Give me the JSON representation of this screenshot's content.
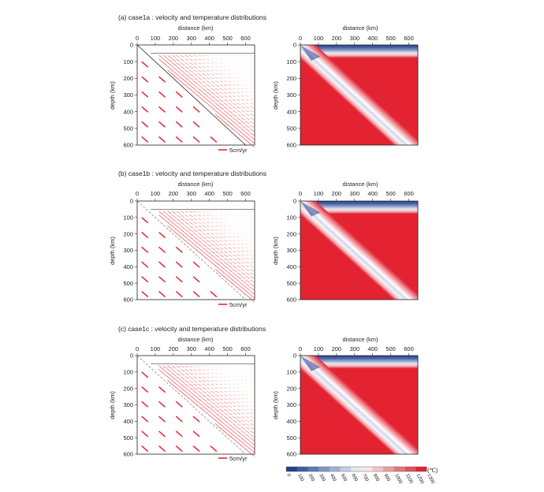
{
  "colors": {
    "vector": "#e8262c",
    "mantle": "#e42332",
    "cold": "#283f8a",
    "axis": "#222222",
    "cutoff": "#444444"
  },
  "axes": {
    "distance_label": "distance (km)",
    "depth_label": "depth (km)",
    "x_ticks": [
      "0",
      "100",
      "200",
      "300",
      "400",
      "500",
      "600"
    ],
    "y_ticks": [
      "0",
      "100",
      "200",
      "300",
      "400",
      "500",
      "600"
    ],
    "x_range_km": [
      0,
      650
    ],
    "y_range_km": [
      0,
      600
    ]
  },
  "cases": [
    {
      "id": "case1a",
      "title": "(a) case1a : velocity and temperature distributions",
      "scale_label": "5cm/yr",
      "overriding_thickness_km": 50,
      "interface_line": "solid"
    },
    {
      "id": "case1b",
      "title": "(b) case1b : velocity and temperature distributions",
      "scale_label": "5cm/yr",
      "overriding_thickness_km": 50,
      "interface_line": "dashed"
    },
    {
      "id": "case1c",
      "title": "(c) case1c : velocity and temperature distributions",
      "scale_label": "5cm/yr",
      "overriding_thickness_km": 50,
      "interface_line": "dashed"
    }
  ],
  "colorbar": {
    "unit": "(℃)",
    "ticks": [
      "0",
      "100",
      "200",
      "300",
      "400",
      "500",
      "600",
      "700",
      "800",
      "900",
      "1000",
      "1100",
      "1200",
      "1300"
    ],
    "colors": [
      "#283f8a",
      "#3f5c9f",
      "#5d78b2",
      "#7d94c4",
      "#a0b0d4",
      "#c4cde4",
      "#e4e8f2",
      "#f6e4e6",
      "#f2c4c8",
      "#ec9ba3",
      "#e8747e",
      "#e5505b",
      "#e42332"
    ]
  }
}
